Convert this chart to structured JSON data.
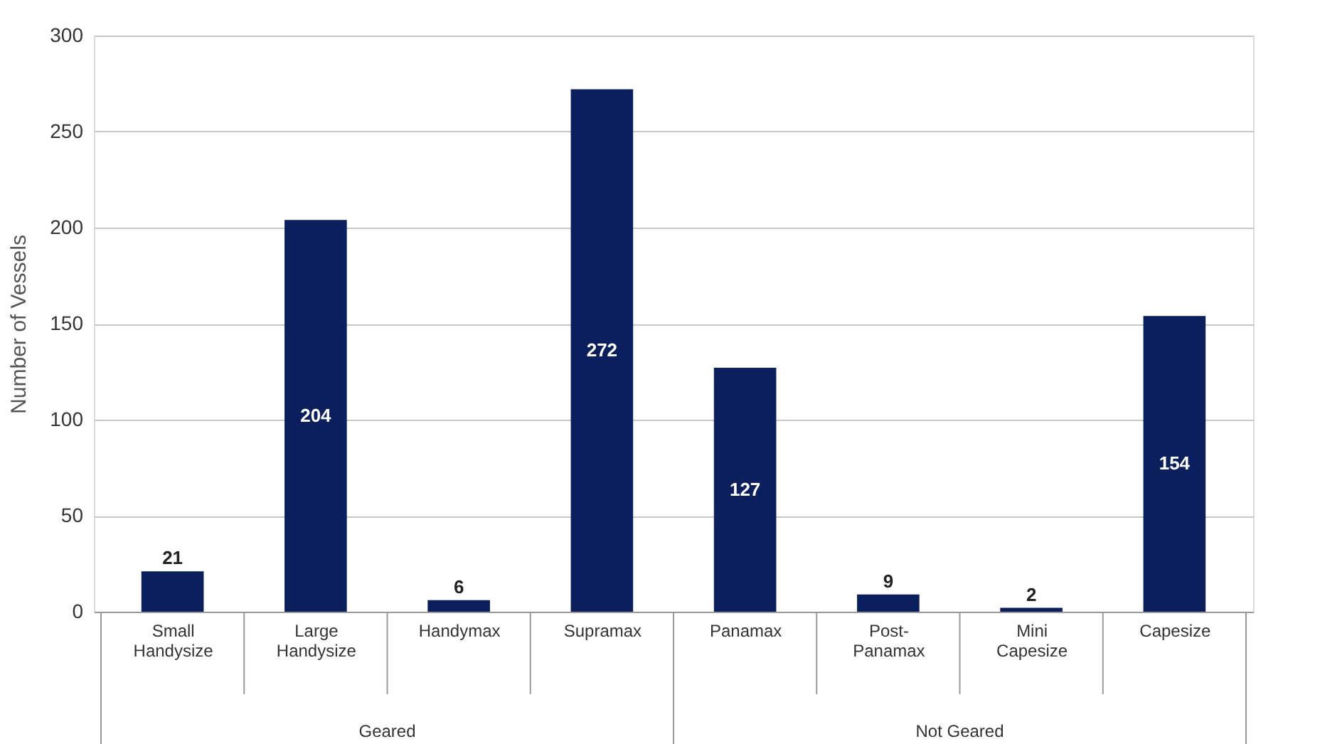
{
  "chart_data": {
    "type": "bar",
    "ylabel": "Number of Vessels",
    "categories": [
      "Small Handysize",
      "Large Handysize",
      "Handymax",
      "Supramax",
      "Panamax",
      "Post-Panamax",
      "Mini Capesize",
      "Capesize"
    ],
    "values": [
      21,
      204,
      6,
      272,
      127,
      9,
      2,
      154
    ],
    "color": "#0b1f5c",
    "ylim": [
      0,
      300
    ],
    "yticks": [
      0,
      50,
      100,
      150,
      200,
      250,
      300
    ],
    "grid": "y",
    "data_labels": true,
    "annotations": [
      "Geared",
      "Not Geared"
    ]
  }
}
